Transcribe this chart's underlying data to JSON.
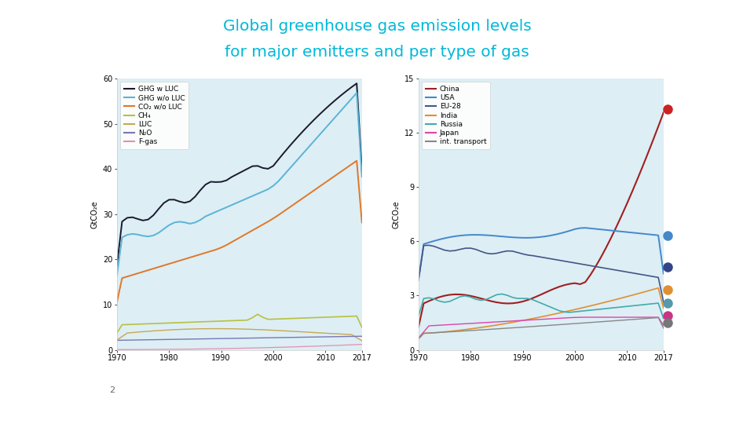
{
  "title_line1": "Global greenhouse gas emission levels",
  "title_line2": "for major emitters and per type of gas",
  "title_color": "#00b8d9",
  "slide_number": "2",
  "bg_color": "#ffffff",
  "plot_bg_color": "#ddeef5",
  "title_underline_color": "#00b8d9",
  "bottom_line_color": "#00b8d9",
  "left_chart": {
    "ylabel": "GtCO₂e",
    "ylim": [
      0,
      60
    ],
    "yticks": [
      0,
      10,
      20,
      30,
      40,
      50,
      60
    ],
    "xlim": [
      1970,
      2017
    ],
    "xticks": [
      1970,
      1980,
      1990,
      2000,
      2010,
      2017
    ],
    "legend_labels": [
      "GHG w LUC",
      "GHG w/o LUC",
      "CO₂ w/o LUC",
      "CH₄",
      "LUC",
      "N₂O",
      "F-gas"
    ],
    "legend_colors": [
      "#1a1a2e",
      "#5ab4d6",
      "#e07828",
      "#b8c040",
      "#c8a850",
      "#7878b0",
      "#e090b0"
    ]
  },
  "right_chart": {
    "ylabel": "GtCO₂e",
    "ylim": [
      0,
      15
    ],
    "yticks": [
      0,
      3,
      6,
      9,
      12,
      15
    ],
    "xlim": [
      1970,
      2017
    ],
    "xticks": [
      1970,
      1980,
      1990,
      2000,
      2010,
      2017
    ],
    "legend_labels": [
      "China",
      "USA",
      "EU-28",
      "India",
      "Russia",
      "Japan",
      "int. transport"
    ],
    "legend_colors": [
      "#a02020",
      "#4488cc",
      "#445588",
      "#e09030",
      "#44aaaa",
      "#dd44aa",
      "#888888"
    ],
    "flag_colors": [
      "#cc2222",
      "#4488cc",
      "#334488",
      "#e09030",
      "#5599aa",
      "#cc3388",
      "#777777"
    ],
    "flag_y": [
      13.3,
      6.3,
      4.6,
      3.3,
      2.6,
      1.9,
      1.5
    ]
  }
}
